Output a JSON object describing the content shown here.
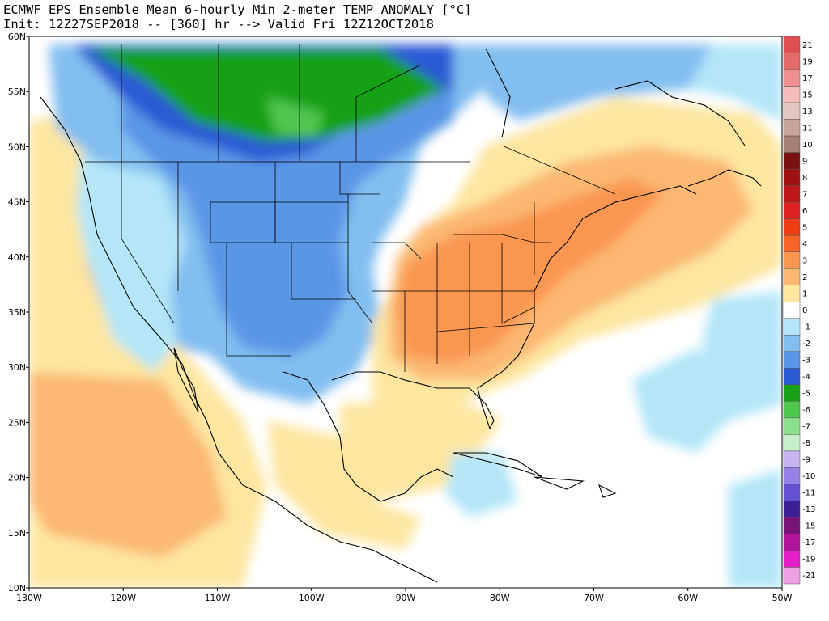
{
  "title": {
    "line1": "ECMWF EPS Ensemble Mean 6-hourly Min 2-meter TEMP ANOMALY [°C]",
    "line2": "Init: 12Z27SEP2018 -- [360] hr --> Valid Fri 12Z12OCT2018"
  },
  "map_extent": {
    "lon": [
      -130,
      -50
    ],
    "lat": [
      10,
      60
    ]
  },
  "x_ticks": [
    {
      "lon": -130,
      "label": "130W"
    },
    {
      "lon": -120,
      "label": "120W"
    },
    {
      "lon": -110,
      "label": "110W"
    },
    {
      "lon": -100,
      "label": "100W"
    },
    {
      "lon": -90,
      "label": "90W"
    },
    {
      "lon": -80,
      "label": "80W"
    },
    {
      "lon": -70,
      "label": "70W"
    },
    {
      "lon": -60,
      "label": "60W"
    },
    {
      "lon": -50,
      "label": "50W"
    }
  ],
  "y_ticks": [
    {
      "lat": 60,
      "label": "60N"
    },
    {
      "lat": 55,
      "label": "55N"
    },
    {
      "lat": 50,
      "label": "50N"
    },
    {
      "lat": 45,
      "label": "45N"
    },
    {
      "lat": 40,
      "label": "40N"
    },
    {
      "lat": 35,
      "label": "35N"
    },
    {
      "lat": 30,
      "label": "30N"
    },
    {
      "lat": 25,
      "label": "25N"
    },
    {
      "lat": 20,
      "label": "20N"
    },
    {
      "lat": 15,
      "label": "15N"
    },
    {
      "lat": 10,
      "label": "10N"
    }
  ],
  "colorbar": [
    {
      "label": "21",
      "color": "#e05050"
    },
    {
      "label": "19",
      "color": "#e56a6a"
    },
    {
      "label": "17",
      "color": "#ee9090"
    },
    {
      "label": "15",
      "color": "#f6bcbc"
    },
    {
      "label": "13",
      "color": "#e2c7c0"
    },
    {
      "label": "11",
      "color": "#c8a59b"
    },
    {
      "label": "10",
      "color": "#a47f72"
    },
    {
      "label": "9",
      "color": "#7a1010"
    },
    {
      "label": "8",
      "color": "#a01010"
    },
    {
      "label": "7",
      "color": "#c01818"
    },
    {
      "label": "6",
      "color": "#e02020"
    },
    {
      "label": "5",
      "color": "#f03c14"
    },
    {
      "label": "4",
      "color": "#f86428"
    },
    {
      "label": "3",
      "color": "#fa9650"
    },
    {
      "label": "2",
      "color": "#fbb872"
    },
    {
      "label": "1",
      "color": "#fde6a0"
    },
    {
      "label": "0",
      "color": "#ffffff"
    },
    {
      "label": "-1",
      "color": "#b4e6f8"
    },
    {
      "label": "-2",
      "color": "#82bef0"
    },
    {
      "label": "-3",
      "color": "#5a96e6"
    },
    {
      "label": "-4",
      "color": "#2a5ad4"
    },
    {
      "label": "-5",
      "color": "#18a018"
    },
    {
      "label": "-6",
      "color": "#50c850"
    },
    {
      "label": "-7",
      "color": "#8ce08c"
    },
    {
      "label": "-8",
      "color": "#c8f0c8"
    },
    {
      "label": "-9",
      "color": "#c8b4f0"
    },
    {
      "label": "-10",
      "color": "#9682e6"
    },
    {
      "label": "-11",
      "color": "#6450d2"
    },
    {
      "label": "-13",
      "color": "#3c1e96"
    },
    {
      "label": "-15",
      "color": "#781478"
    },
    {
      "label": "-17",
      "color": "#b4149c"
    },
    {
      "label": "-19",
      "color": "#e61ec8"
    },
    {
      "label": "-21",
      "color": "#f0a0e6"
    }
  ]
}
